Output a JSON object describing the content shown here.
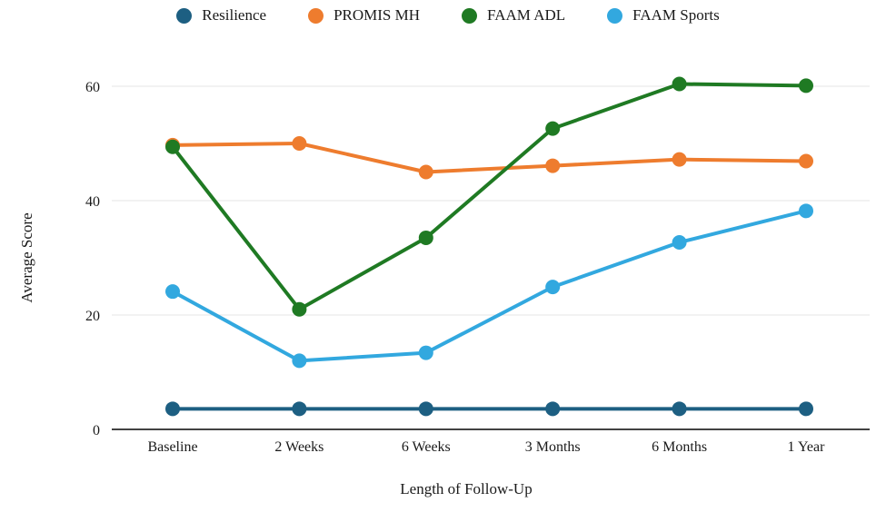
{
  "chart_data": {
    "type": "line",
    "xlabel": "Length of Follow-Up",
    "ylabel": "Average Score",
    "ylim": [
      0,
      60
    ],
    "yticks": [
      0,
      20,
      40,
      60
    ],
    "grid": true,
    "legend_position": "top",
    "categories": [
      "Baseline",
      "2 Weeks",
      "6 Weeks",
      "3 Months",
      "6 Months",
      "1 Year"
    ],
    "series": [
      {
        "name": "Resilience",
        "color": "#1d5f82",
        "values": [
          3.6,
          3.6,
          3.6,
          3.6,
          3.6,
          3.6
        ]
      },
      {
        "name": "PROMIS MH",
        "color": "#ee7c2e",
        "values": [
          49.7,
          50.0,
          45.0,
          46.1,
          47.2,
          46.9
        ]
      },
      {
        "name": "FAAM ADL",
        "color": "#1f7a23",
        "values": [
          49.4,
          21.0,
          33.5,
          52.6,
          60.4,
          60.1
        ]
      },
      {
        "name": "FAAM Sports",
        "color": "#32a8df",
        "values": [
          24.1,
          12.0,
          13.4,
          24.9,
          32.7,
          38.2
        ]
      }
    ],
    "colors": {
      "gridline": "#e4e4e4",
      "axis_line": "#424242",
      "text": "#1a1a1a"
    }
  }
}
